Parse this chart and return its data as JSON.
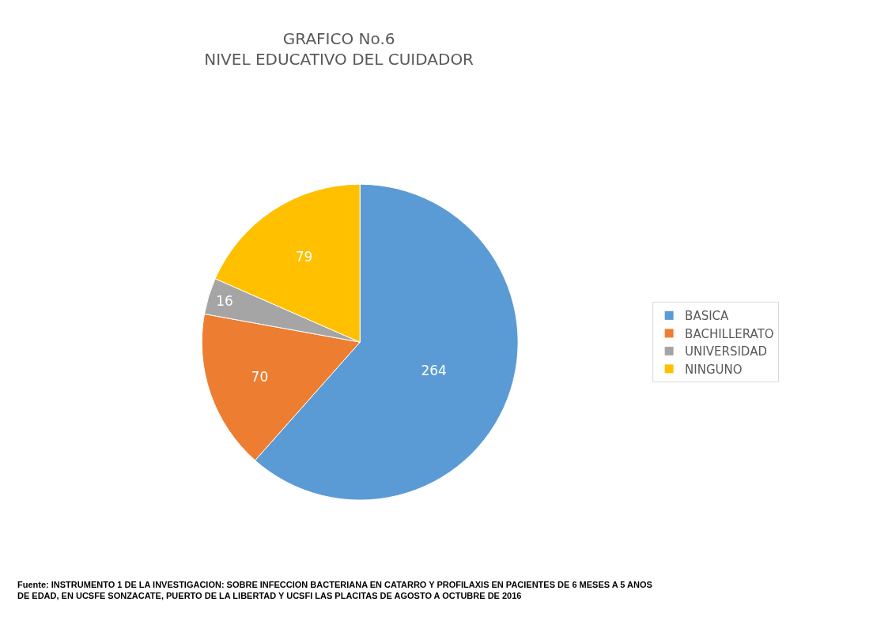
{
  "chart_data": {
    "type": "pie",
    "title": "GRAFICO No.6\nNIVEL EDUCATIVO DEL CUIDADOR",
    "categories": [
      "BASICA",
      "BACHILLERATO",
      "UNIVERSIDAD",
      "NINGUNO"
    ],
    "values": [
      264,
      70,
      16,
      79
    ],
    "colors": [
      "#5b9bd5",
      "#ed7d31",
      "#a5a5a5",
      "#ffc000"
    ],
    "data_labels": true,
    "legend": "right",
    "annotations": [
      "Fuente: INSTRUMENTO 1 DE LA INVESTIGACION: SOBRE INFECCION BACTERIANA EN CATARRO Y PROFILAXIS EN PACIENTES DE 6 MESES A 5 ANOS\nDE EDAD, EN UCSFE SONZACATE, PUERTO DE LA LIBERTAD Y UCSFI LAS PLACITAS DE AGOSTO A OCTUBRE DE 2016"
    ]
  }
}
